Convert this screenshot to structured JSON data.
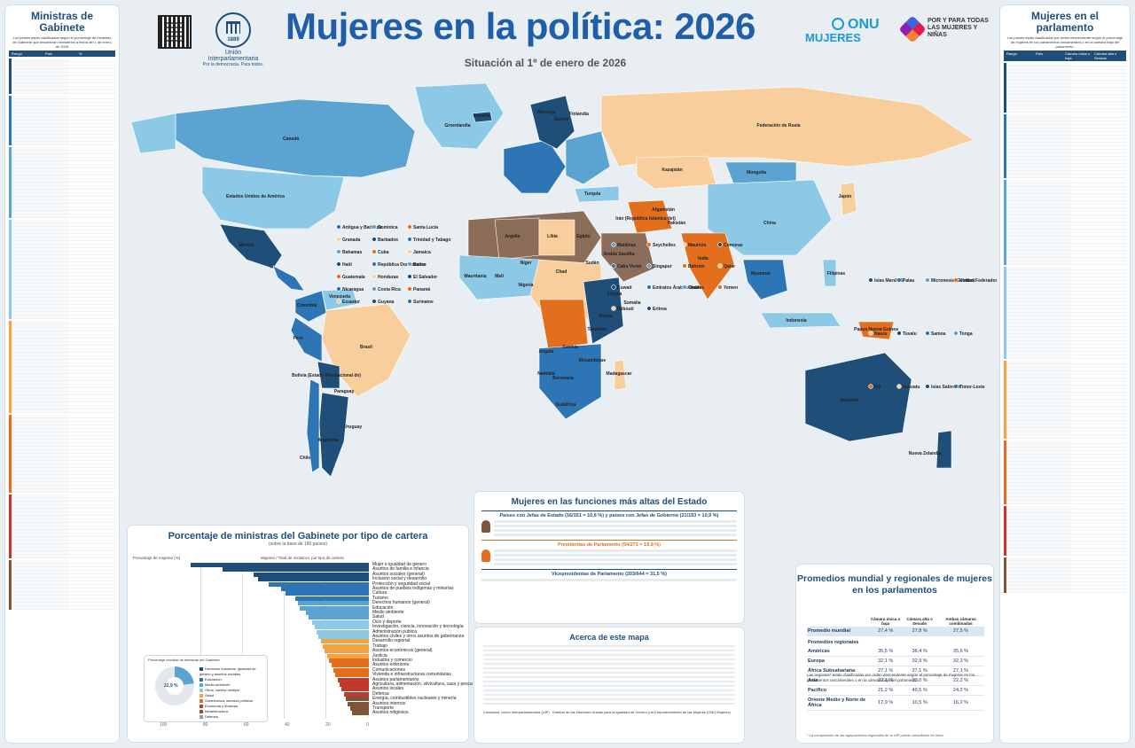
{
  "header": {
    "title": "Mujeres en la política: 2026",
    "subtitle": "Situación al 1º de enero de 2026",
    "ipu_name": "Unión Interparlamentaria",
    "ipu_motto": "Por la democracia. Para todos.",
    "ipu_year": "1889",
    "onu_line1": "ONU",
    "onu_line2": "MUJERES",
    "todas_text": "POR Y PARA TODAS LAS MUJERES Y NIÑAS"
  },
  "left_panel": {
    "title": "Ministras de Gabinete",
    "desc": "Los países están clasificados según el porcentaje de ministras de Gabinete que encabezan ministerios a fecha del 1 de enero de 2026",
    "col_rank": "Rango",
    "col_country": "País",
    "col_pct": "%"
  },
  "right_panel": {
    "title": "Mujeres en el parlamento",
    "desc": "Los países están clasificados por orden descendente según el porcentaje de mujeres en los parlamentos unicamerales o en la cámara baja del parlamento.",
    "col_rank": "Rango",
    "col_country": "País",
    "col_lower": "Cámara única o baja",
    "col_upper": "Cámara alta o Senado"
  },
  "map": {
    "labels": [
      "Canadá",
      "Estados Unidos de América",
      "México",
      "Brasil",
      "Argentina",
      "Chile",
      "Perú",
      "Groenlandia",
      "Federación de Rusia",
      "China",
      "India",
      "Australia",
      "Kazajstán",
      "Mongolia",
      "Argelia",
      "Libia",
      "Egipto",
      "Sudán",
      "Nigeria",
      "Etiopía",
      "Kenya",
      "Sudáfrica",
      "Namibia",
      "Angola",
      "Madagascar",
      "Indonesia",
      "Japón",
      "Nueva Zelandia",
      "Irán (República Islámica del)",
      "Arabia Saudita",
      "Turquía",
      "Mauritania",
      "Malí",
      "Níger",
      "Chad",
      "Somalia",
      "Mozambique",
      "Botswana",
      "Zambia",
      "Tanzanía",
      "Bolivia (Estado Plurinacional de)",
      "Colombia",
      "Venezuela",
      "Islandia",
      "Noruega",
      "Suecia",
      "Finlandia",
      "Papua Nueva Guinea",
      "Filipinas",
      "Myanmar",
      "Pakistán",
      "Afganistán",
      "Uruguay",
      "Paraguay"
    ],
    "callouts": [
      "Islas Marshall",
      "Palau",
      "Micronesia (Estados Federados de)",
      "Kiribati",
      "Nauru",
      "Tuvalu",
      "Samoa",
      "Tonga",
      "Fiji",
      "Vanuatu",
      "Islas Salomón",
      "Timor-Leste",
      "Maldivas",
      "Seychelles",
      "Mauricio",
      "Comoras",
      "Cabo Verde",
      "Singapur",
      "Bahrein",
      "Qatar",
      "Kuwait",
      "Emiratos Árabes Unidos",
      "Omán",
      "Yemen",
      "Djibouti",
      "Eritrea",
      "Antigua y Barbuda",
      "Dominica",
      "Santa Lucía",
      "Granada",
      "Barbados",
      "Trinidad y Tabago",
      "Bahamas",
      "Cuba",
      "Jamaica",
      "Haití",
      "República Dominicana",
      "Belice",
      "Guatemala",
      "Honduras",
      "El Salvador",
      "Nicaragua",
      "Costa Rica",
      "Panamá",
      "Ecuador",
      "Guyana",
      "Suriname"
    ]
  },
  "cabinet_chart": {
    "title": "Porcentaje de ministras del Gabinete por tipo de cartera",
    "subtitle": "(sobre la base de 180 países)",
    "axis_left": "Porcentaje de mujeres (%)",
    "axis_right": "Mujeres / Total de ministros, por tipo de cartera",
    "donut_title": "Porcentaje mundial de ministras del Gabinete",
    "donut_value": "22,9 %",
    "legend": [
      "Derechos humanos, igualdad de género y asuntos sociales",
      "Educación",
      "Medio ambiente",
      "Otros, cartera múltiple",
      "Salud",
      "Gobernanza, asuntos políticos",
      "Economía y finanzas",
      "Infraestructura",
      "Defensa"
    ],
    "x_ticks": [
      "100",
      "80",
      "60",
      "40",
      "20",
      "0"
    ]
  },
  "chart_data": {
    "type": "bar",
    "title": "Porcentaje de ministras del Gabinete por tipo de cartera",
    "categories": [
      "Mujer e igualdad de género",
      "Asuntos de familia e infancia",
      "Asuntos sociales (general)",
      "Inclusión social y desarrollo",
      "Protección y seguridad social",
      "Asuntos de pueblos indígenas y minorías",
      "Cultura",
      "Turismo",
      "Derechos humanos (general)",
      "Educación",
      "Medio ambiente",
      "Salud",
      "Ocio y deporte",
      "Investigación, ciencia, innovación y tecnología",
      "Administración pública",
      "Asuntos civiles y otros asuntos de gobernanza",
      "Desarrollo regional",
      "Trabajo",
      "Asuntos económicos (general)",
      "Justicia",
      "Industria y comercio",
      "Asuntos exteriores",
      "Comunicaciones",
      "Vivienda e infraestructuras comunitarias",
      "Asuntos parlamentarios",
      "Agricultura, alimentación, silvicultura, caza y pesca",
      "Asuntos locales",
      "Defensa",
      "Energía, combustibles nucleares y minería",
      "Asuntos internos",
      "Transporte",
      "Asuntos religiosos"
    ],
    "values": [
      85,
      70,
      55,
      53,
      48,
      42,
      40,
      35,
      34,
      33,
      30,
      29,
      27,
      26,
      25,
      24,
      23,
      22,
      21,
      20,
      19,
      18,
      17,
      16,
      15,
      14,
      13,
      12,
      11,
      10,
      9,
      8
    ],
    "xlim": [
      0,
      100
    ]
  },
  "functions": {
    "title": "Mujeres en las funciones más altas del Estado",
    "head1": "Países con Jefas de Estado (16/151 = 10,6 %) y países con Jefas de Gobierno (21/193 = 10,9 %)",
    "head2": "Presidentas de Parlamento (54/271 = 19,9 %)",
    "head3": "Vicepresidentas de Parlamento (203/644 = 31,5 %)"
  },
  "about": {
    "title": "Acerca de este mapa",
    "contact": "Contactos: Unión Interparlamentaria (UIP) · Entidad de las Naciones Unidas para la Igualdad de Género y el Empoderamiento de las Mujeres (ONU Mujeres)"
  },
  "averages": {
    "title": "Promedios mundial y regionales de mujeres en los parlamentos",
    "col1": "Cámara única o baja",
    "col2": "Cámara alta o Senado",
    "col3": "Ambas cámaras combinadas",
    "world_label": "Promedio mundial",
    "world": [
      "27,4 %",
      "27,8 %",
      "27,5 %"
    ],
    "regional_label": "Promedios regionales",
    "note": "Las regiones* están clasificadas por orden descendente según el porcentaje de mujeres en los parlamentos unicamerales o en la cámara baja del parlamento.",
    "rows": [
      {
        "name": "Américas",
        "v": [
          "35,5 %",
          "36,4 %",
          "35,6 %"
        ]
      },
      {
        "name": "Europa",
        "v": [
          "32,1 %",
          "32,9 %",
          "32,3 %"
        ]
      },
      {
        "name": "África Subsahariana",
        "v": [
          "27,1 %",
          "27,1 %",
          "27,1 %"
        ]
      },
      {
        "name": "Asia",
        "v": [
          "22,1 %",
          "23,0 %",
          "22,2 %"
        ]
      },
      {
        "name": "Pacífico",
        "v": [
          "21,2 %",
          "49,5 %",
          "24,2 %"
        ]
      },
      {
        "name": "Oriente Medio y Norte de África",
        "v": [
          "17,9 %",
          "10,5 %",
          "16,2 %"
        ]
      }
    ],
    "foot": "* La composición de las agrupaciones regionales de la UIP puede consultarse en línea."
  },
  "colors": {
    "dark_blue": "#1f4e79",
    "mid_blue": "#2e75b6",
    "light_blue": "#5ba3d0",
    "pale_blue": "#8cc9e6",
    "peach": "#f8cf9c",
    "orange": "#e36f1e",
    "brown": "#8c6d5a",
    "grey": "#cfd6dc",
    "ocean": "#ffffff"
  }
}
